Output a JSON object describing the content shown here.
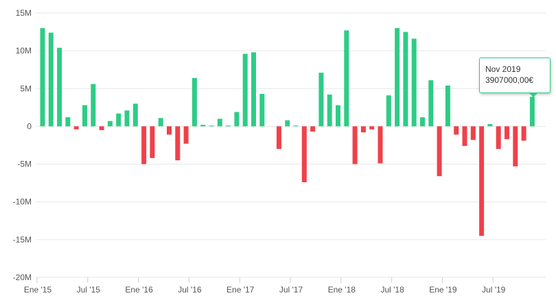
{
  "chart_data": {
    "type": "bar",
    "ylim": [
      -20000000,
      15000000
    ],
    "y_ticks": [
      {
        "value": 15000000,
        "label": "15M"
      },
      {
        "value": 10000000,
        "label": "10M"
      },
      {
        "value": 5000000,
        "label": "5M"
      },
      {
        "value": 0,
        "label": "0"
      },
      {
        "value": -5000000,
        "label": "-5M"
      },
      {
        "value": -10000000,
        "label": "-10M"
      },
      {
        "value": -15000000,
        "label": "-15M"
      },
      {
        "value": -20000000,
        "label": "-20M"
      }
    ],
    "x_ticks": [
      {
        "index": 0,
        "label": "Ene '15"
      },
      {
        "index": 6,
        "label": "Jul '15"
      },
      {
        "index": 12,
        "label": "Ene '16"
      },
      {
        "index": 18,
        "label": "Jul '16"
      },
      {
        "index": 24,
        "label": "Ene '17"
      },
      {
        "index": 30,
        "label": "Jul '17"
      },
      {
        "index": 36,
        "label": "Ene '18"
      },
      {
        "index": 42,
        "label": "Jul '18"
      },
      {
        "index": 48,
        "label": "Ene '19"
      },
      {
        "index": 54,
        "label": "Jul '19"
      }
    ],
    "values": [
      13000000,
      12400000,
      10400000,
      1200000,
      -400000,
      2800000,
      5600000,
      -500000,
      700000,
      1700000,
      2100000,
      3000000,
      -5000000,
      -4200000,
      1100000,
      -1100000,
      -4500000,
      -2300000,
      6400000,
      200000,
      100000,
      1000000,
      100000,
      1900000,
      9600000,
      9800000,
      4300000,
      0,
      -3000000,
      800000,
      100000,
      -7400000,
      -700000,
      7100000,
      4200000,
      2800000,
      12700000,
      -5000000,
      -800000,
      -400000,
      -4900000,
      4100000,
      13000000,
      12500000,
      11600000,
      1200000,
      6100000,
      -6600000,
      5400000,
      -1100000,
      -2600000,
      -1800000,
      -14500000,
      300000,
      -3000000,
      -1700000,
      -5300000,
      -1900000,
      3907000
    ],
    "colors": {
      "positive": "#2ecc86",
      "negative": "#f0414a",
      "grid": "#e6e6e6"
    },
    "grid": true,
    "tooltip": {
      "title": "Nov 2019",
      "value": "3907000,00€"
    }
  }
}
